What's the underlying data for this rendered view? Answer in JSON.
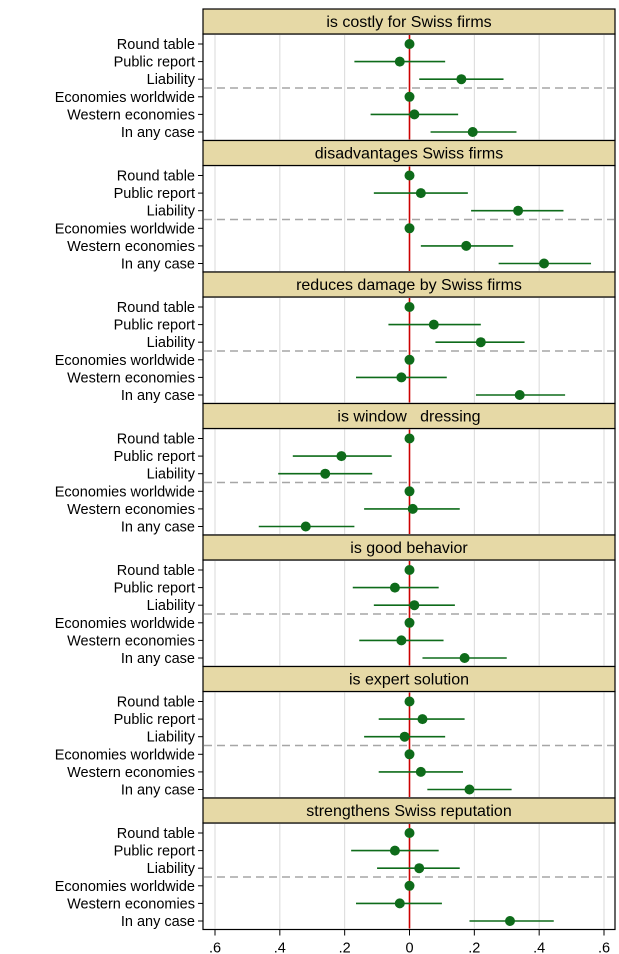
{
  "chart_data": {
    "type": "scatter",
    "subtype": "coefficient-plot",
    "colors": {
      "point": "#0e6b1a",
      "zero_line": "#cc0000",
      "strip": "#e6d9a6",
      "grid": "#d9d9d9",
      "separator": "#a6a6a6"
    },
    "x_ticks": [
      {
        "value": -0.6,
        "label": ".6"
      },
      {
        "value": -0.4,
        "label": ".4"
      },
      {
        "value": -0.2,
        "label": ".2"
      },
      {
        "value": 0,
        "label": "0"
      },
      {
        "value": 0.2,
        "label": ".2"
      },
      {
        "value": 0.4,
        "label": ".4"
      },
      {
        "value": 0.6,
        "label": ".6"
      }
    ],
    "xlim": [
      -0.62,
      0.62
    ],
    "grid": true,
    "row_labels": [
      "Round table",
      "Public report",
      "Liability",
      "Economies worldwide",
      "Western economies",
      "In any case"
    ],
    "panels": [
      {
        "title": "is costly for Swiss firms",
        "points": [
          {
            "row": "Round table",
            "est": 0.0,
            "lo": 0.0,
            "hi": 0.0
          },
          {
            "row": "Public report",
            "est": -0.03,
            "lo": -0.17,
            "hi": 0.11
          },
          {
            "row": "Liability",
            "est": 0.16,
            "lo": 0.03,
            "hi": 0.29
          },
          {
            "row": "Economies worldwide",
            "est": 0.0,
            "lo": 0.0,
            "hi": 0.0
          },
          {
            "row": "Western economies",
            "est": 0.015,
            "lo": -0.12,
            "hi": 0.15
          },
          {
            "row": "In any case",
            "est": 0.195,
            "lo": 0.065,
            "hi": 0.33
          }
        ]
      },
      {
        "title": "disadvantages Swiss firms",
        "points": [
          {
            "row": "Round table",
            "est": 0.0,
            "lo": 0.0,
            "hi": 0.0
          },
          {
            "row": "Public report",
            "est": 0.035,
            "lo": -0.11,
            "hi": 0.18
          },
          {
            "row": "Liability",
            "est": 0.335,
            "lo": 0.19,
            "hi": 0.475
          },
          {
            "row": "Economies worldwide",
            "est": 0.0,
            "lo": 0.0,
            "hi": 0.0
          },
          {
            "row": "Western economies",
            "est": 0.175,
            "lo": 0.035,
            "hi": 0.32
          },
          {
            "row": "In any case",
            "est": 0.415,
            "lo": 0.275,
            "hi": 0.56
          }
        ]
      },
      {
        "title": "reduces damage by Swiss firms",
        "points": [
          {
            "row": "Round table",
            "est": 0.0,
            "lo": 0.0,
            "hi": 0.0
          },
          {
            "row": "Public report",
            "est": 0.075,
            "lo": -0.065,
            "hi": 0.22
          },
          {
            "row": "Liability",
            "est": 0.22,
            "lo": 0.08,
            "hi": 0.355
          },
          {
            "row": "Economies worldwide",
            "est": 0.0,
            "lo": 0.0,
            "hi": 0.0
          },
          {
            "row": "Western economies",
            "est": -0.025,
            "lo": -0.165,
            "hi": 0.115
          },
          {
            "row": "In any case",
            "est": 0.34,
            "lo": 0.205,
            "hi": 0.48
          }
        ]
      },
      {
        "title": "is window   dressing",
        "points": [
          {
            "row": "Round table",
            "est": 0.0,
            "lo": 0.0,
            "hi": 0.0
          },
          {
            "row": "Public report",
            "est": -0.21,
            "lo": -0.36,
            "hi": -0.055
          },
          {
            "row": "Liability",
            "est": -0.26,
            "lo": -0.405,
            "hi": -0.115
          },
          {
            "row": "Economies worldwide",
            "est": 0.0,
            "lo": 0.0,
            "hi": 0.0
          },
          {
            "row": "Western economies",
            "est": 0.01,
            "lo": -0.14,
            "hi": 0.155
          },
          {
            "row": "In any case",
            "est": -0.32,
            "lo": -0.465,
            "hi": -0.17
          }
        ]
      },
      {
        "title": "is good behavior",
        "points": [
          {
            "row": "Round table",
            "est": 0.0,
            "lo": 0.0,
            "hi": 0.0
          },
          {
            "row": "Public report",
            "est": -0.045,
            "lo": -0.175,
            "hi": 0.09
          },
          {
            "row": "Liability",
            "est": 0.015,
            "lo": -0.11,
            "hi": 0.14
          },
          {
            "row": "Economies worldwide",
            "est": 0.0,
            "lo": 0.0,
            "hi": 0.0
          },
          {
            "row": "Western economies",
            "est": -0.025,
            "lo": -0.155,
            "hi": 0.105
          },
          {
            "row": "In any case",
            "est": 0.17,
            "lo": 0.04,
            "hi": 0.3
          }
        ]
      },
      {
        "title": "is expert solution",
        "points": [
          {
            "row": "Round table",
            "est": 0.0,
            "lo": 0.0,
            "hi": 0.0
          },
          {
            "row": "Public report",
            "est": 0.04,
            "lo": -0.095,
            "hi": 0.17
          },
          {
            "row": "Liability",
            "est": -0.015,
            "lo": -0.14,
            "hi": 0.11
          },
          {
            "row": "Economies worldwide",
            "est": 0.0,
            "lo": 0.0,
            "hi": 0.0
          },
          {
            "row": "Western economies",
            "est": 0.035,
            "lo": -0.095,
            "hi": 0.165
          },
          {
            "row": "In any case",
            "est": 0.185,
            "lo": 0.055,
            "hi": 0.315
          }
        ]
      },
      {
        "title": "strengthens Swiss reputation",
        "points": [
          {
            "row": "Round table",
            "est": 0.0,
            "lo": 0.0,
            "hi": 0.0
          },
          {
            "row": "Public report",
            "est": -0.045,
            "lo": -0.18,
            "hi": 0.09
          },
          {
            "row": "Liability",
            "est": 0.03,
            "lo": -0.1,
            "hi": 0.155
          },
          {
            "row": "Economies worldwide",
            "est": 0.0,
            "lo": 0.0,
            "hi": 0.0
          },
          {
            "row": "Western economies",
            "est": -0.03,
            "lo": -0.165,
            "hi": 0.1
          },
          {
            "row": "In any case",
            "est": 0.31,
            "lo": 0.185,
            "hi": 0.445
          }
        ]
      }
    ]
  }
}
